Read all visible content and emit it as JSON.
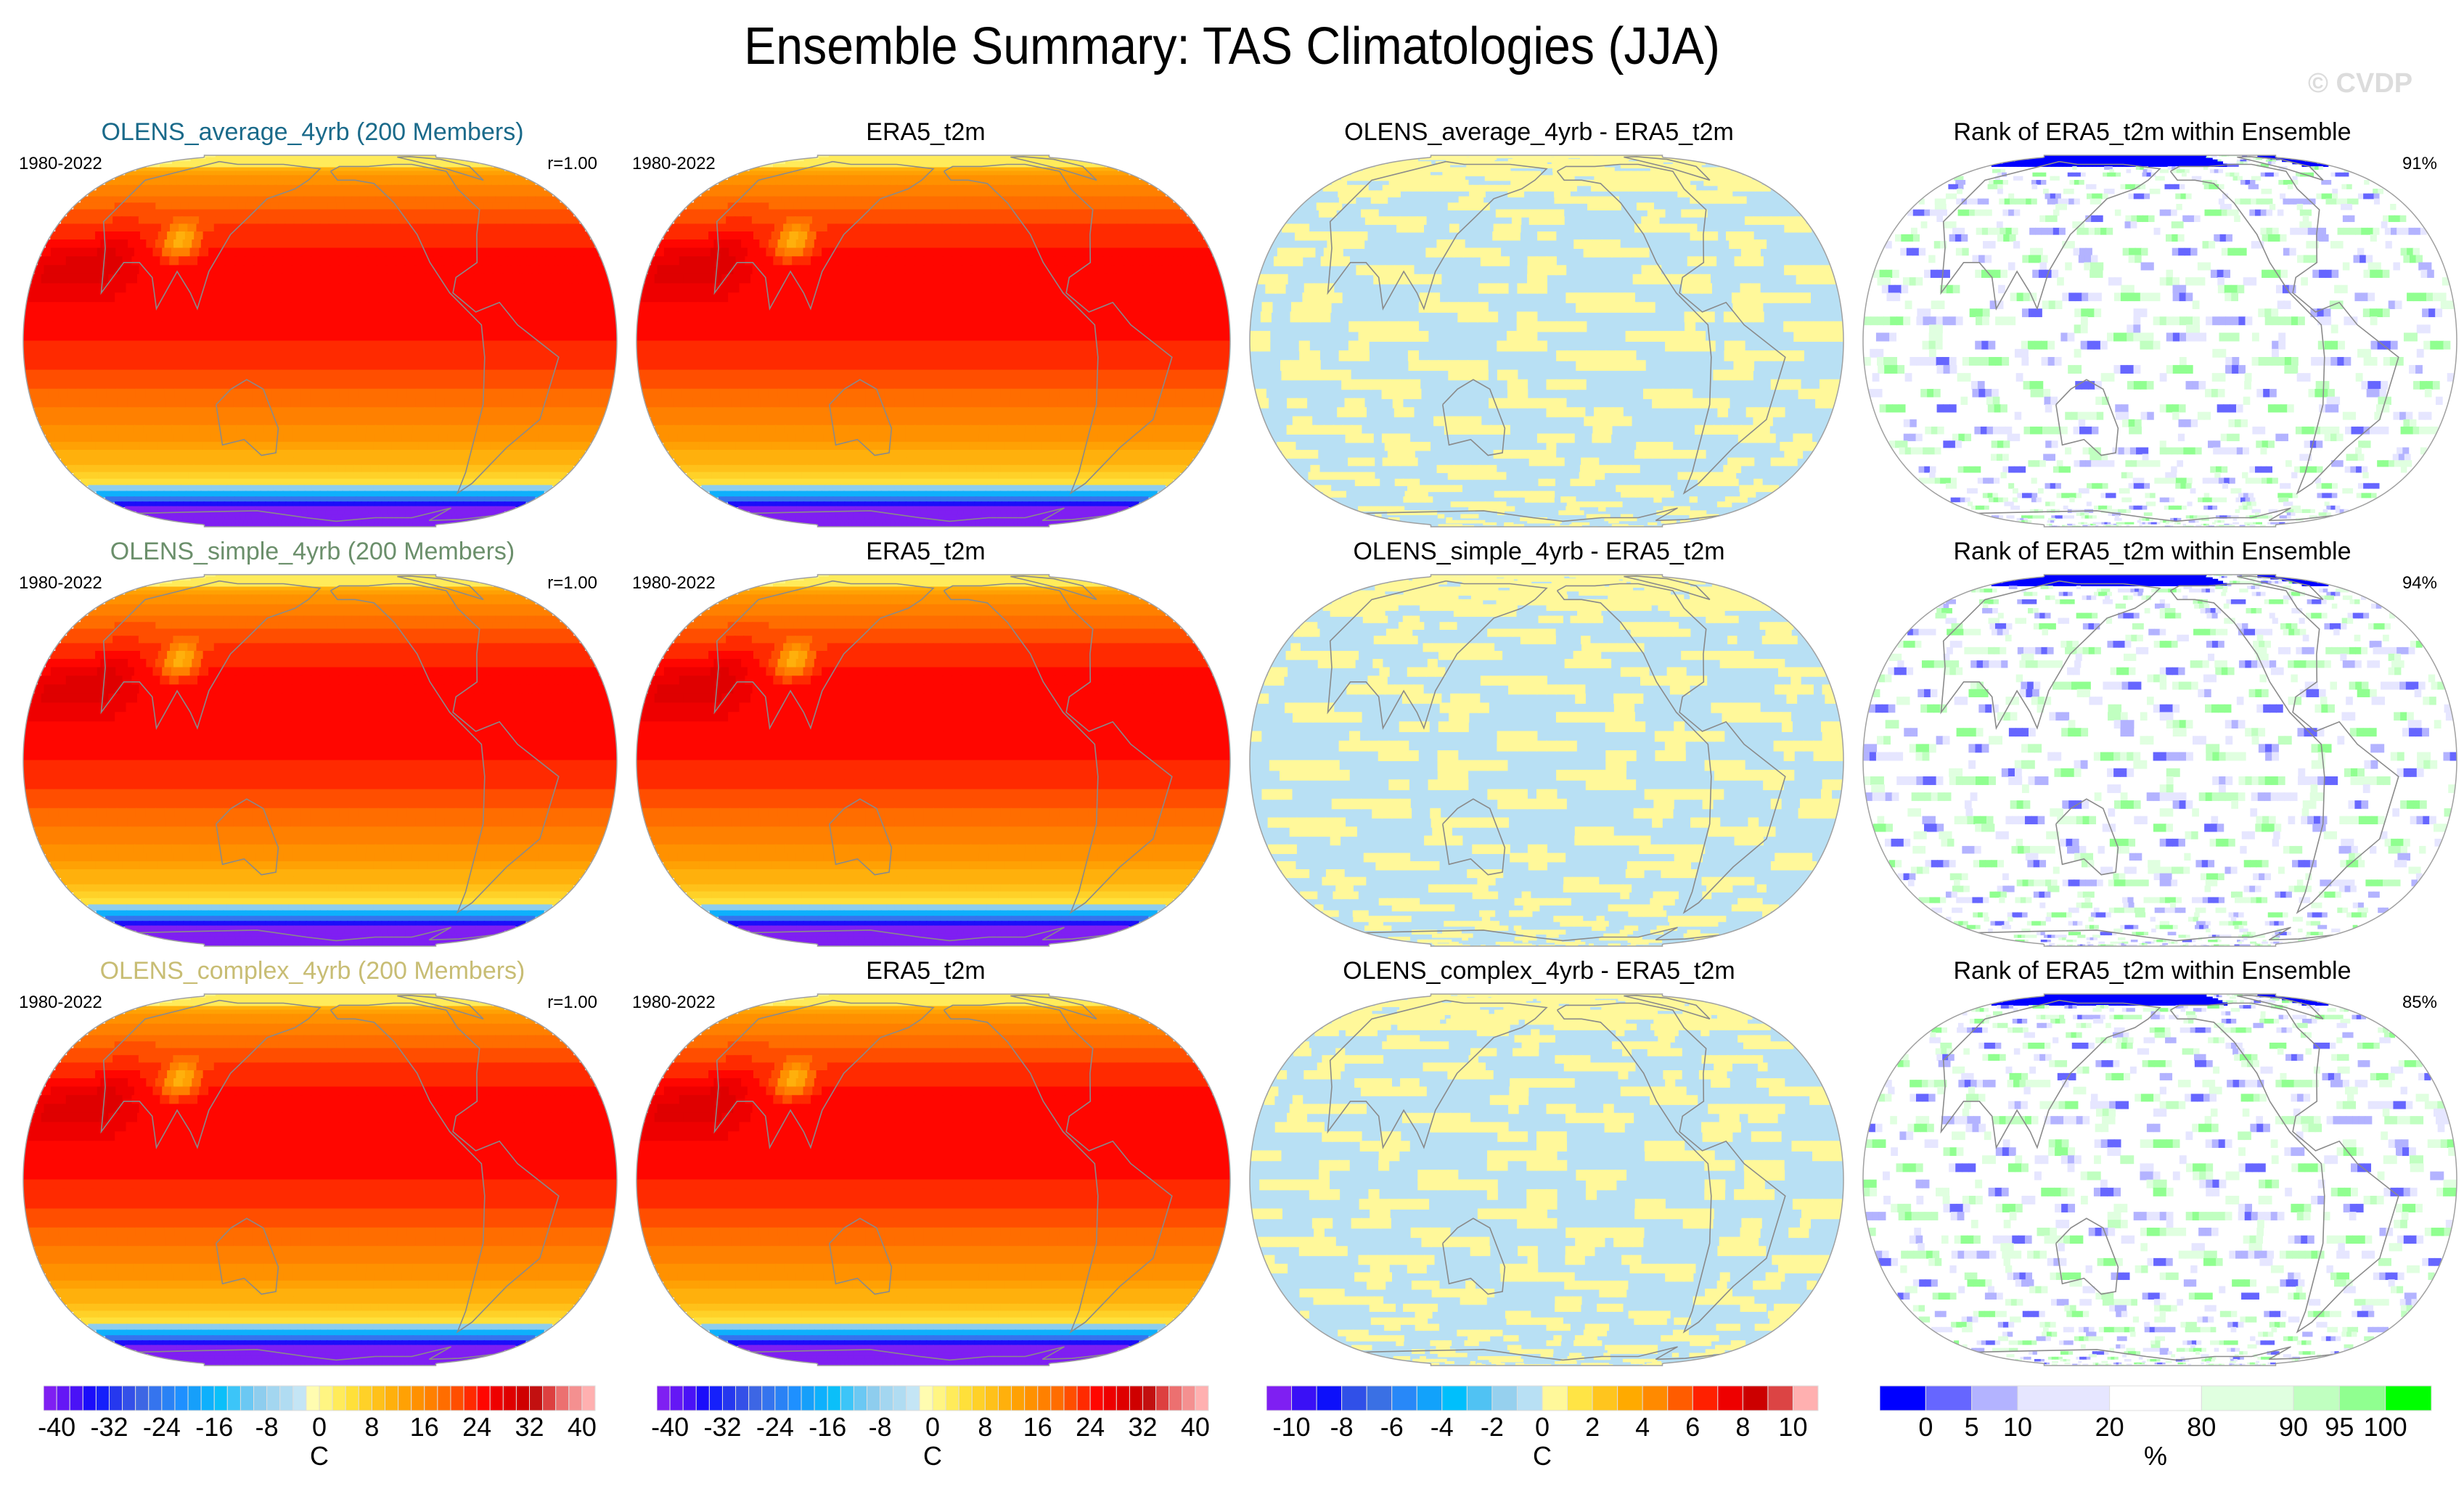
{
  "title": "Ensemble Summary: TAS Climatologies (JJA)",
  "watermark": "© CVDP",
  "colors": {
    "title_row1": "#1a6a8a",
    "title_row2": "#6b8f6b",
    "title_row3": "#c8bd74",
    "title_default": "#000000",
    "coast": "#8a8a8a",
    "diff_pos": "#fff89a",
    "diff_neg": "#b8e0f4"
  },
  "rows": [
    {
      "ensemble_title": "OLENS_average_4yrb (200 Members)",
      "title_color_key": "title_row1",
      "period": "1980-2022",
      "pattern_corr": "r=1.00",
      "obs_title": "ERA5_t2m",
      "obs_period": "1980-2022",
      "diff_title": "OLENS_average_4yrb - ERA5_t2m",
      "rank_title": "Rank of ERA5_t2m within Ensemble",
      "rank_pct": "91%"
    },
    {
      "ensemble_title": "OLENS_simple_4yrb (200 Members)",
      "title_color_key": "title_row2",
      "period": "1980-2022",
      "pattern_corr": "r=1.00",
      "obs_title": "ERA5_t2m",
      "obs_period": "1980-2022",
      "diff_title": "OLENS_simple_4yrb - ERA5_t2m",
      "rank_title": "Rank of ERA5_t2m within Ensemble",
      "rank_pct": "94%"
    },
    {
      "ensemble_title": "OLENS_complex_4yrb (200 Members)",
      "title_color_key": "title_row3",
      "period": "1980-2022",
      "pattern_corr": "r=1.00",
      "obs_title": "ERA5_t2m",
      "obs_period": "1980-2022",
      "diff_title": "OLENS_complex_4yrb - ERA5_t2m",
      "rank_title": "Rank of ERA5_t2m within Ensemble",
      "rank_pct": "85%"
    }
  ],
  "chart_data": [
    {
      "type": "heatmap",
      "title": "Climatology colorbar (ensemble & ERA5_t2m)",
      "units": "C",
      "range": [
        -40,
        40
      ],
      "interval": 2,
      "tick_labels": [
        "-40",
        "-32",
        "-24",
        "-16",
        "-8",
        "0",
        "8",
        "16",
        "24",
        "32",
        "40"
      ],
      "colors": [
        "#7f1ff2",
        "#6417f5",
        "#4a12f6",
        "#1b0dfa",
        "#1520fb",
        "#2638ee",
        "#3450e8",
        "#3d66e4",
        "#3574ee",
        "#2a82f5",
        "#1e90ff",
        "#169ffa",
        "#0eb0fc",
        "#0bbff9",
        "#3cc5f8",
        "#6bc8f3",
        "#8ecdee",
        "#a3d6f0",
        "#b0dcf2",
        "#c4e5f5",
        "#fffcb0",
        "#fff582",
        "#ffeb5a",
        "#ffe03a",
        "#ffd128",
        "#ffc11a",
        "#ffb00c",
        "#ffa104",
        "#ff9100",
        "#ff8000",
        "#ff6d00",
        "#ff4e00",
        "#ff2a00",
        "#ff0600",
        "#ee0000",
        "#df0000",
        "#cf0000",
        "#c21010",
        "#dd4040",
        "#ec7070",
        "#f49090",
        "#ffb0b0"
      ]
    },
    {
      "type": "heatmap",
      "title": "Difference colorbar",
      "units": "C",
      "range": [
        -10,
        10
      ],
      "interval": 1,
      "tick_labels": [
        "-10",
        "-8",
        "-6",
        "-4",
        "-2",
        "0",
        "2",
        "4",
        "6",
        "8",
        "10"
      ],
      "colors": [
        "#7f1ff2",
        "#3a10f6",
        "#0d10fa",
        "#3050e8",
        "#3a70e4",
        "#2888f8",
        "#12a2fb",
        "#00bffc",
        "#50c2f3",
        "#96d0ee",
        "#b8e0f4",
        "#fff89a",
        "#ffe445",
        "#ffc51e",
        "#ffaa00",
        "#ff8a00",
        "#ff5c00",
        "#ff2000",
        "#ee0000",
        "#cc0000",
        "#dc4444",
        "#ffb0b0"
      ]
    },
    {
      "type": "heatmap",
      "title": "Rank colorbar",
      "units": "%",
      "levels": [
        0,
        5,
        10,
        20,
        80,
        90,
        95,
        100
      ],
      "tick_labels": [
        "0",
        "5",
        "10",
        "20",
        "80",
        "90",
        "95",
        "100"
      ],
      "colors": [
        "#0000ff",
        "#6666ff",
        "#b3b3ff",
        "#e6e6ff",
        "#ffffff",
        "#e0ffe0",
        "#c0ffc0",
        "#90ff90",
        "#00ff00"
      ],
      "bin_widths": [
        1,
        1,
        1,
        2,
        2,
        2,
        1,
        1,
        1
      ]
    }
  ]
}
